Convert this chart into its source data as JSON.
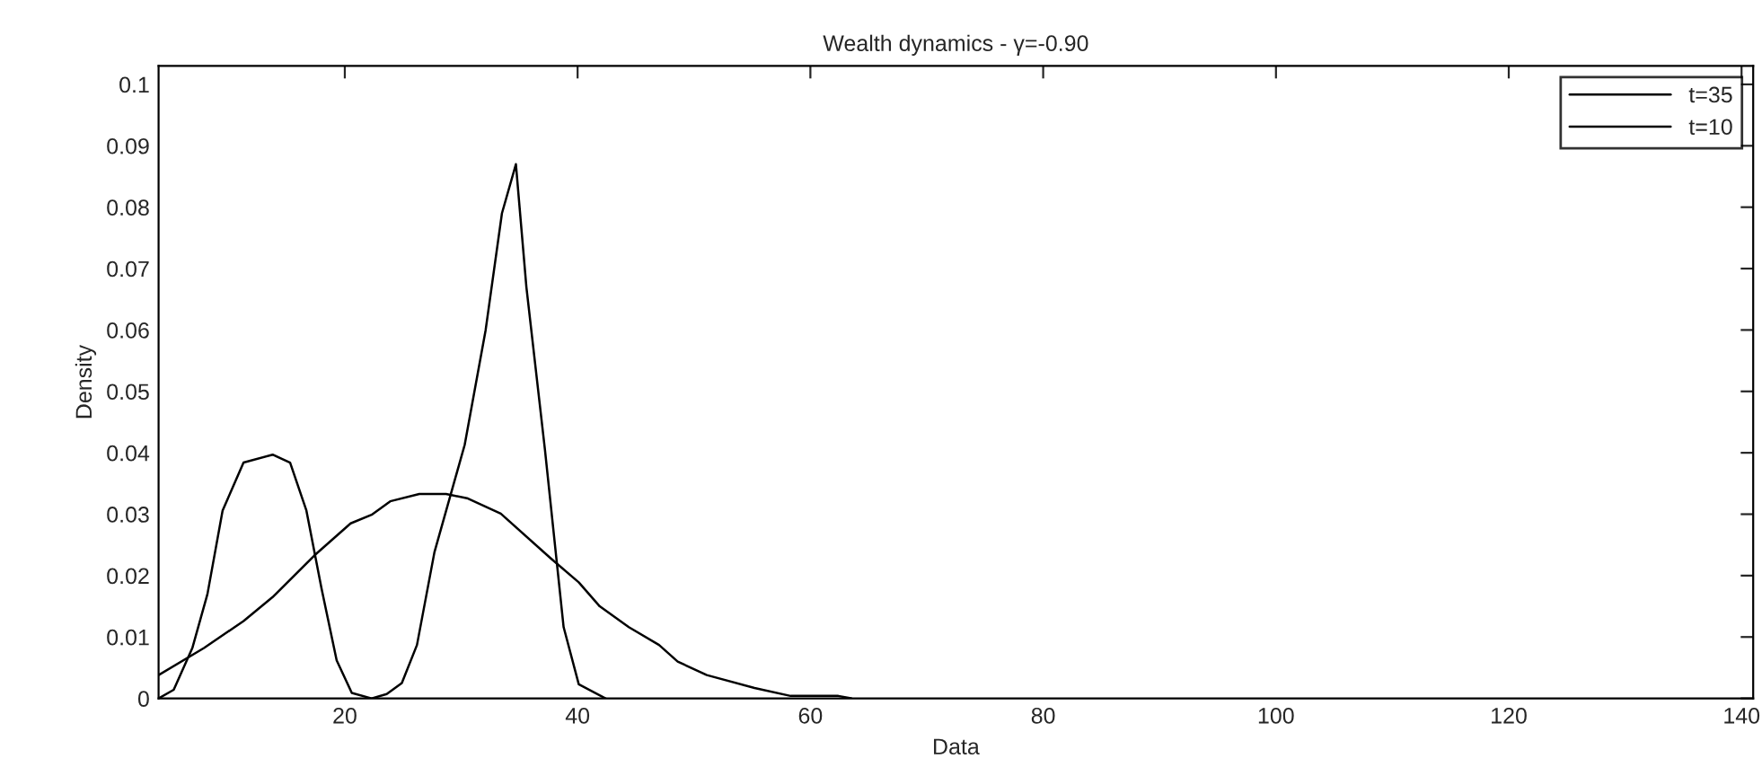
{
  "chart_data": {
    "type": "line",
    "title": "Wealth dynamics - γ=-0.90",
    "xlabel": "Data",
    "ylabel": "Density",
    "xlim": [
      4,
      141
    ],
    "xticks": [
      20,
      40,
      60,
      80,
      100,
      120,
      140
    ],
    "ylim": [
      0,
      0.103
    ],
    "yticks": [
      0,
      0.01,
      0.02,
      0.03,
      0.04,
      0.05,
      0.06,
      0.07,
      0.08,
      0.09,
      0.1
    ],
    "grid": false,
    "legend": "top right",
    "marker": "none",
    "line_style": "solid",
    "series": [
      {
        "name": "t=35",
        "color": "#000000",
        "x": [
          4,
          7.9,
          11.3,
          13.8,
          17.4,
          20.5,
          22.3,
          23.9,
          26.4,
          28.7,
          30.5,
          33.4,
          37.7,
          40.1,
          41.9,
          44.4,
          47.0,
          48.6,
          51.1,
          55.2,
          58.3,
          62.4,
          63.5
        ],
        "values": [
          0.0038,
          0.0082,
          0.0126,
          0.0165,
          0.0233,
          0.0285,
          0.0299,
          0.0321,
          0.0333,
          0.0333,
          0.0326,
          0.0301,
          0.0228,
          0.0189,
          0.015,
          0.0116,
          0.0087,
          0.006,
          0.0038,
          0.0017,
          0.0004,
          0.0004,
          0
        ]
      },
      {
        "name": "t=10",
        "color": "#000000",
        "x": [
          4,
          5.3,
          6.9,
          8.2,
          9.5,
          11.3,
          13.8,
          15.3,
          16.7,
          18.0,
          19.3,
          20.6,
          22.3,
          23.6,
          24.9,
          26.2,
          27.7,
          30.3,
          32.1,
          33.5,
          34.7,
          35.6,
          37.2,
          38.8,
          40.1,
          42.4
        ],
        "values": [
          0,
          0.0014,
          0.0082,
          0.017,
          0.0306,
          0.0384,
          0.0397,
          0.0384,
          0.0306,
          0.0179,
          0.0062,
          0.0009,
          0,
          0.0007,
          0.0025,
          0.0087,
          0.0238,
          0.0413,
          0.06,
          0.079,
          0.087,
          0.067,
          0.0404,
          0.0116,
          0.0023,
          0
        ]
      }
    ]
  }
}
